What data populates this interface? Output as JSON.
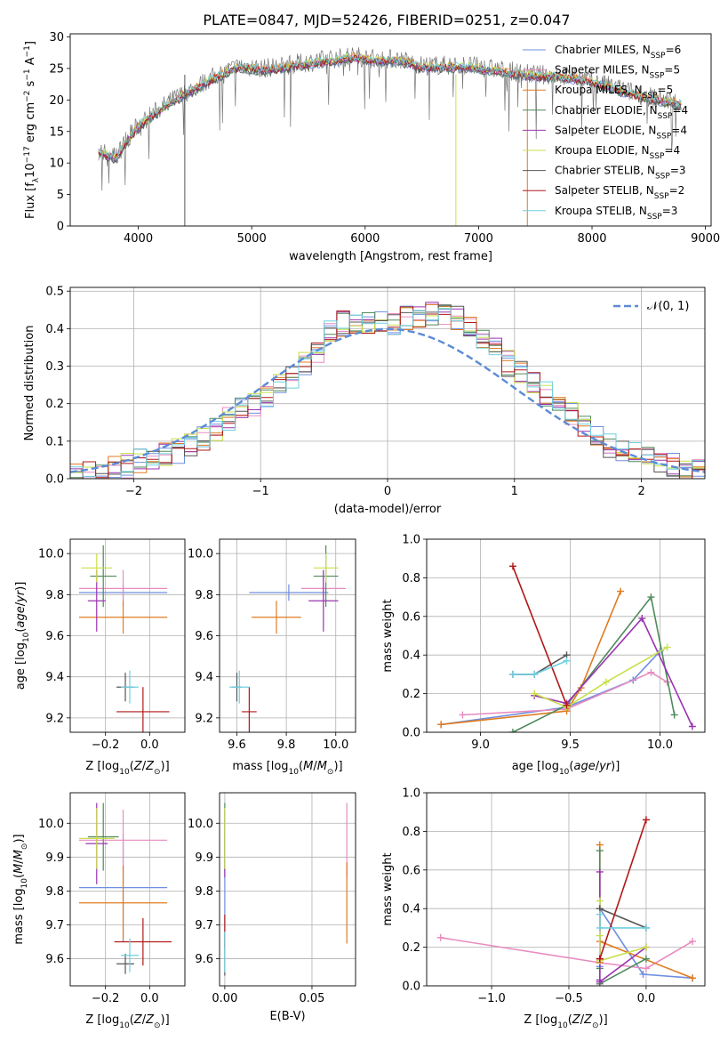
{
  "figure_title": "PLATE=0847, MJD=52426, FIBERID=0251, z=0.047",
  "colors": {
    "Chabrier MILES": "#6f8fe0",
    "Salpeter MILES": "#e88cc0",
    "Kroupa MILES": "#e07b20",
    "Chabrier ELODIE": "#4f8a5a",
    "Salpeter ELODIE": "#9a34b0",
    "Kroupa ELODIE": "#c8e04a",
    "Chabrier STELIB": "#555555",
    "Salpeter STELIB": "#b21818",
    "Kroupa STELIB": "#6fd0e0"
  },
  "chart_data": [
    {
      "id": "spectrum",
      "type": "line",
      "xlabel": "wavelength [Angstrom, rest frame]",
      "ylabel": "Flux [f_λ 10^-17 erg cm^-2 s^-1 A^-1]",
      "xlim": [
        3400,
        9050
      ],
      "ylim": [
        0,
        30.5
      ],
      "xticks": [
        4000,
        5000,
        6000,
        7000,
        8000,
        9000
      ],
      "yticks": [
        0,
        5,
        10,
        15,
        20,
        25,
        30
      ],
      "legend_position": "top-right",
      "legend": [
        {
          "label": "Chabrier MILES, N",
          "sub": "SSP",
          "tail": "=6"
        },
        {
          "label": "Salpeter MILES, N",
          "sub": "SSP",
          "tail": "=5"
        },
        {
          "label": "Kroupa MILES, N",
          "sub": "SSP",
          "tail": "=5"
        },
        {
          "label": "Chabrier ELODIE, N",
          "sub": "SSP",
          "tail": "=4"
        },
        {
          "label": "Salpeter ELODIE, N",
          "sub": "SSP",
          "tail": "=4"
        },
        {
          "label": "Kroupa ELODIE, N",
          "sub": "SSP",
          "tail": "=4"
        },
        {
          "label": "Chabrier STELIB, N",
          "sub": "SSP",
          "tail": "=3"
        },
        {
          "label": "Salpeter STELIB, N",
          "sub": "SSP",
          "tail": "=2"
        },
        {
          "label": "Kroupa STELIB, N",
          "sub": "SSP",
          "tail": "=3"
        }
      ],
      "data_envelope": {
        "x": [
          3650,
          3800,
          3950,
          4100,
          4300,
          4500,
          4700,
          4900,
          5100,
          5300,
          5500,
          5700,
          5900,
          6100,
          6300,
          6500,
          6700,
          6900,
          7100,
          7300,
          7500,
          7700,
          7900,
          8100,
          8300,
          8500,
          8800
        ],
        "y": [
          12,
          11,
          15,
          17.5,
          20,
          22,
          24,
          25.5,
          25,
          25.5,
          26,
          26.5,
          27,
          26.5,
          26.5,
          25.5,
          25.5,
          25.5,
          25,
          24.5,
          24,
          24,
          23.5,
          22.5,
          21.5,
          20.5,
          19.5
        ]
      }
    },
    {
      "id": "residuals",
      "type": "area",
      "xlabel": "(data-model)/error",
      "ylabel": "Normed distribution",
      "xlim": [
        -2.5,
        2.5
      ],
      "ylim": [
        0,
        0.51
      ],
      "xticks": [
        -2,
        -1,
        0,
        1,
        2
      ],
      "yticks": [
        0.0,
        0.1,
        0.2,
        0.3,
        0.4,
        0.5
      ],
      "grid": true,
      "legend_position": "top-right",
      "legend": [
        "𝒩(0, 1)"
      ],
      "reference_curve": "normal distribution mean 0, sigma 1",
      "histogram_bins": {
        "x": [
          -2.4,
          -2.2,
          -2.0,
          -1.8,
          -1.6,
          -1.4,
          -1.2,
          -1.0,
          -0.8,
          -0.6,
          -0.4,
          -0.2,
          0.0,
          0.2,
          0.4,
          0.6,
          0.8,
          1.0,
          1.2,
          1.4,
          1.6,
          1.8,
          2.0,
          2.2,
          2.4
        ],
        "y": [
          0.01,
          0.02,
          0.04,
          0.06,
          0.08,
          0.12,
          0.17,
          0.21,
          0.26,
          0.32,
          0.41,
          0.42,
          0.41,
          0.43,
          0.45,
          0.42,
          0.36,
          0.29,
          0.24,
          0.19,
          0.12,
          0.08,
          0.06,
          0.04,
          0.03
        ]
      }
    },
    {
      "id": "age-vs-Z",
      "type": "scatter",
      "xlabel": "Z [log10(Z/Z⊙)]",
      "ylabel": "age [log10(age/yr)]",
      "xlim": [
        -0.36,
        0.16
      ],
      "ylim": [
        9.13,
        10.07
      ],
      "xticks": [
        -0.2,
        0.0
      ],
      "yticks": [
        9.2,
        9.4,
        9.6,
        9.8,
        10.0
      ],
      "grid": true,
      "points": [
        {
          "series": "Chabrier MILES",
          "x": -0.12,
          "xerr": 0.2,
          "y": 9.81,
          "yerr": 0.04
        },
        {
          "series": "Salpeter MILES",
          "x": -0.12,
          "xerr": 0.2,
          "y": 9.83,
          "yerr": 0.09
        },
        {
          "series": "Kroupa MILES",
          "x": -0.12,
          "xerr": 0.2,
          "y": 9.69,
          "yerr": 0.08
        },
        {
          "series": "Chabrier ELODIE",
          "x": -0.21,
          "xerr": 0.06,
          "y": 9.89,
          "yerr": 0.15
        },
        {
          "series": "Salpeter ELODIE",
          "x": -0.24,
          "xerr": 0.04,
          "y": 9.77,
          "yerr": 0.15
        },
        {
          "series": "Kroupa ELODIE",
          "x": -0.24,
          "xerr": 0.07,
          "y": 9.93,
          "yerr": 0.07
        },
        {
          "series": "Chabrier STELIB",
          "x": -0.11,
          "xerr": 0.04,
          "y": 9.35,
          "yerr": 0.07
        },
        {
          "series": "Salpeter STELIB",
          "x": -0.03,
          "xerr": 0.12,
          "y": 9.23,
          "yerr": 0.12
        },
        {
          "series": "Kroupa STELIB",
          "x": -0.09,
          "xerr": 0.04,
          "y": 9.35,
          "yerr": 0.08
        }
      ]
    },
    {
      "id": "age-vs-mass",
      "type": "scatter",
      "xlabel": "mass [log10(M/M⊙)]",
      "ylabel": "",
      "xlim": [
        9.53,
        10.08
      ],
      "ylim": [
        9.13,
        10.07
      ],
      "xticks": [
        9.6,
        9.8,
        10.0
      ],
      "yticks": [
        9.2,
        9.4,
        9.6,
        9.8,
        10.0
      ],
      "grid": true,
      "points": [
        {
          "series": "Chabrier MILES",
          "x": 9.81,
          "xerr": 0.16,
          "y": 9.81,
          "yerr": 0.04
        },
        {
          "series": "Salpeter MILES",
          "x": 9.95,
          "xerr": 0.09,
          "y": 9.83,
          "yerr": 0.09
        },
        {
          "series": "Kroupa MILES",
          "x": 9.76,
          "xerr": 0.1,
          "y": 9.69,
          "yerr": 0.08
        },
        {
          "series": "Chabrier ELODIE",
          "x": 9.96,
          "xerr": 0.05,
          "y": 9.89,
          "yerr": 0.15
        },
        {
          "series": "Salpeter ELODIE",
          "x": 9.95,
          "xerr": 0.06,
          "y": 9.77,
          "yerr": 0.15
        },
        {
          "series": "Kroupa ELODIE",
          "x": 9.96,
          "xerr": 0.05,
          "y": 9.93,
          "yerr": 0.07
        },
        {
          "series": "Chabrier STELIB",
          "x": 9.6,
          "xerr": 0.02,
          "y": 9.35,
          "yerr": 0.07
        },
        {
          "series": "Salpeter STELIB",
          "x": 9.65,
          "xerr": 0.03,
          "y": 9.23,
          "yerr": 0.12
        },
        {
          "series": "Kroupa STELIB",
          "x": 9.61,
          "xerr": 0.04,
          "y": 9.35,
          "yerr": 0.08
        }
      ]
    },
    {
      "id": "weight-vs-age",
      "type": "line",
      "xlabel": "age [log10(age/yr)]",
      "ylabel": "mass weight",
      "xlim": [
        8.7,
        10.25
      ],
      "ylim": [
        0.0,
        1.0
      ],
      "xticks": [
        9.0,
        9.5,
        10.0
      ],
      "yticks": [
        0.0,
        0.2,
        0.4,
        0.6,
        0.8,
        1.0
      ],
      "grid": true,
      "series": [
        {
          "name": "Chabrier MILES",
          "x": [
            8.78,
            9.48,
            9.85,
            10.0
          ],
          "y": [
            0.04,
            0.13,
            0.27,
            0.42
          ]
        },
        {
          "name": "Salpeter MILES",
          "x": [
            8.9,
            9.48,
            9.95,
            10.04
          ],
          "y": [
            0.09,
            0.12,
            0.31,
            0.26
          ]
        },
        {
          "name": "Kroupa MILES",
          "x": [
            8.78,
            9.48,
            9.56,
            9.78
          ],
          "y": [
            0.04,
            0.11,
            0.23,
            0.73
          ]
        },
        {
          "name": "Chabrier ELODIE",
          "x": [
            9.18,
            9.48,
            9.95,
            10.08
          ],
          "y": [
            0.0,
            0.14,
            0.7,
            0.09
          ]
        },
        {
          "name": "Salpeter ELODIE",
          "x": [
            9.3,
            9.48,
            9.9,
            10.18
          ],
          "y": [
            0.19,
            0.15,
            0.59,
            0.03
          ]
        },
        {
          "name": "Kroupa ELODIE",
          "x": [
            9.3,
            9.48,
            9.7,
            10.04
          ],
          "y": [
            0.2,
            0.13,
            0.26,
            0.44
          ]
        },
        {
          "name": "Chabrier STELIB",
          "x": [
            9.18,
            9.3,
            9.48
          ],
          "y": [
            0.3,
            0.3,
            0.4
          ]
        },
        {
          "name": "Salpeter STELIB",
          "x": [
            9.18,
            9.48
          ],
          "y": [
            0.86,
            0.14
          ]
        },
        {
          "name": "Kroupa STELIB",
          "x": [
            9.18,
            9.3,
            9.48
          ],
          "y": [
            0.3,
            0.3,
            0.37
          ]
        }
      ]
    },
    {
      "id": "mass-vs-Z",
      "type": "scatter",
      "xlabel": "Z [log10(Z/Z⊙)]",
      "ylabel": "mass [log10(M/M⊙)]",
      "xlim": [
        -0.36,
        0.16
      ],
      "ylim": [
        9.52,
        10.09
      ],
      "xticks": [
        -0.2,
        0.0
      ],
      "yticks": [
        9.6,
        9.7,
        9.8,
        9.9,
        10.0
      ],
      "grid": true,
      "points": [
        {
          "series": "Chabrier MILES",
          "x": -0.12,
          "xerr": 0.2,
          "y": 9.81,
          "yerr": 0.16
        },
        {
          "series": "Salpeter MILES",
          "x": -0.12,
          "xerr": 0.2,
          "y": 9.95,
          "yerr": 0.09
        },
        {
          "series": "Kroupa MILES",
          "x": -0.12,
          "xerr": 0.2,
          "y": 9.765,
          "yerr": 0.11
        },
        {
          "series": "Chabrier ELODIE",
          "x": -0.21,
          "xerr": 0.07,
          "y": 9.96,
          "yerr": 0.1
        },
        {
          "series": "Salpeter ELODIE",
          "x": -0.24,
          "xerr": 0.05,
          "y": 9.94,
          "yerr": 0.12
        },
        {
          "series": "Kroupa ELODIE",
          "x": -0.24,
          "xerr": 0.08,
          "y": 9.955,
          "yerr": 0.09
        },
        {
          "series": "Chabrier STELIB",
          "x": -0.11,
          "xerr": 0.04,
          "y": 9.585,
          "yerr": 0.03
        },
        {
          "series": "Salpeter STELIB",
          "x": -0.03,
          "xerr": 0.13,
          "y": 9.65,
          "yerr": 0.07
        },
        {
          "series": "Kroupa STELIB",
          "x": -0.09,
          "xerr": 0.04,
          "y": 9.61,
          "yerr": 0.05
        }
      ]
    },
    {
      "id": "mass-vs-ebv",
      "type": "scatter",
      "xlabel": "E(B-V)",
      "ylabel": "",
      "xlim": [
        -0.003,
        0.075
      ],
      "ylim": [
        9.52,
        10.09
      ],
      "xticks": [
        0.0,
        0.05
      ],
      "yticks": [
        9.6,
        9.7,
        9.8,
        9.9,
        10.0
      ],
      "grid": true,
      "points": [
        {
          "series": "Chabrier MILES",
          "x": 0.0,
          "y": 9.81,
          "yerr": 0.16
        },
        {
          "series": "Salpeter MILES",
          "x": 0.07,
          "y": 9.95,
          "yerr": 0.11
        },
        {
          "series": "Kroupa MILES",
          "x": 0.07,
          "y": 9.765,
          "yerr": 0.12
        },
        {
          "series": "Chabrier ELODIE",
          "x": 0.0,
          "y": 9.96,
          "yerr": 0.1
        },
        {
          "series": "Salpeter ELODIE",
          "x": 0.0,
          "y": 9.94,
          "yerr": 0.1
        },
        {
          "series": "Kroupa ELODIE",
          "x": 0.0,
          "y": 9.955,
          "yerr": 0.09
        },
        {
          "series": "Chabrier STELIB",
          "x": 0.0,
          "y": 9.6,
          "yerr": 0.05
        },
        {
          "series": "Salpeter STELIB",
          "x": 0.0,
          "y": 9.68,
          "yerr": 0.05
        },
        {
          "series": "Kroupa STELIB",
          "x": 0.0,
          "y": 9.62,
          "yerr": 0.06
        }
      ]
    },
    {
      "id": "weight-vs-Z",
      "type": "line",
      "xlabel": "Z [log10(Z/Z⊙)]",
      "ylabel": "mass weight",
      "xlim": [
        -1.42,
        0.38
      ],
      "ylim": [
        0.0,
        1.0
      ],
      "xticks": [
        -1.0,
        -0.5,
        0.0
      ],
      "yticks": [
        0.0,
        0.2,
        0.4,
        0.6,
        0.8,
        1.0
      ],
      "grid": true,
      "series": [
        {
          "name": "Chabrier MILES",
          "x": [
            -0.3,
            -0.3,
            -0.02,
            0.3
          ],
          "y": [
            0.1,
            0.4,
            0.06,
            0.04
          ]
        },
        {
          "name": "Salpeter MILES",
          "x": [
            -1.33,
            -0.3,
            0.0,
            0.3
          ],
          "y": [
            0.25,
            0.12,
            0.09,
            0.23
          ]
        },
        {
          "name": "Kroupa MILES",
          "x": [
            -0.3,
            -0.3,
            -0.3,
            0.3
          ],
          "y": [
            0.73,
            0.12,
            0.23,
            0.04
          ]
        },
        {
          "name": "Chabrier ELODIE",
          "x": [
            -0.3,
            -0.3,
            -0.3,
            0.0
          ],
          "y": [
            0.7,
            0.09,
            0.01,
            0.14
          ]
        },
        {
          "name": "Salpeter ELODIE",
          "x": [
            -0.3,
            -0.3,
            -0.3,
            0.0
          ],
          "y": [
            0.59,
            0.03,
            0.02,
            0.2
          ]
        },
        {
          "name": "Kroupa ELODIE",
          "x": [
            -0.3,
            -0.3,
            -0.3,
            0.0
          ],
          "y": [
            0.44,
            0.26,
            0.13,
            0.2
          ]
        },
        {
          "name": "Chabrier STELIB",
          "x": [
            -0.3,
            0.0
          ],
          "y": [
            0.4,
            0.3
          ]
        },
        {
          "name": "Salpeter STELIB",
          "x": [
            -0.3,
            -0.3,
            0.0
          ],
          "y": [
            0.14,
            0.14,
            0.86
          ]
        },
        {
          "name": "Kroupa STELIB",
          "x": [
            -0.3,
            -0.3,
            0.0
          ],
          "y": [
            0.37,
            0.3,
            0.3
          ]
        }
      ]
    }
  ]
}
